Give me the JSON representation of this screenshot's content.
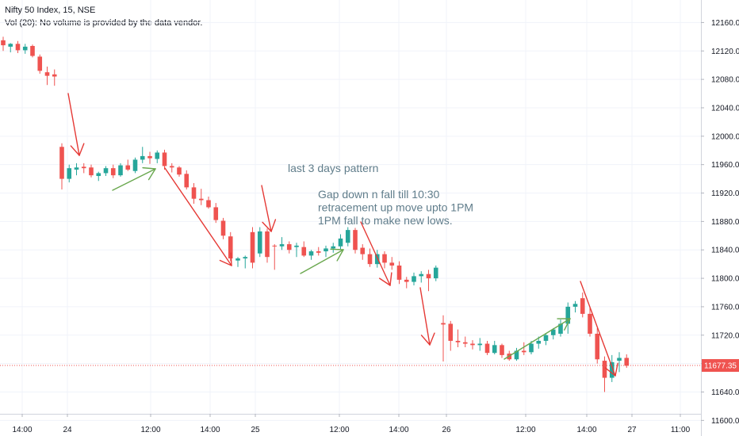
{
  "header": {
    "symbol": "Nifty 50 Index, 15, NSE",
    "volume_note": "Vol (20): No volume is provided by the data vendor."
  },
  "annotations": {
    "title": "last 3 days pattern",
    "lines": [
      "Gap down n fall till 10:30",
      "retracement up move upto 1PM",
      "1PM fall to make new lows."
    ]
  },
  "chart_data": {
    "type": "candlestick",
    "y_axis": {
      "ticks": [
        12160,
        12120,
        12080,
        12040,
        12000,
        11960,
        11920,
        11880,
        11840,
        11800,
        11760,
        11720,
        11680,
        11640,
        11600
      ],
      "range": [
        11587,
        12185
      ]
    },
    "x_axis": {
      "ticks": [
        "14:00",
        "24",
        "12:00",
        "14:00",
        "25",
        "12:00",
        "14:00",
        "26",
        "12:00",
        "14:00",
        "27",
        "11:00"
      ]
    },
    "last_price": {
      "label": "11677.35",
      "value": 11677.35
    },
    "colors": {
      "up": "#26a69a",
      "down": "#ef5350",
      "price_line": "#ef5350",
      "arrow_red": "#e53935",
      "arrow_green": "#6aa84f"
    },
    "candles": [
      {
        "o": 12135,
        "h": 12140,
        "l": 12120,
        "c": 12128
      },
      {
        "o": 12126,
        "h": 12131,
        "l": 12118,
        "c": 12130
      },
      {
        "o": 12130,
        "h": 12134,
        "l": 12117,
        "c": 12121
      },
      {
        "o": 12121,
        "h": 12130,
        "l": 12116,
        "c": 12126
      },
      {
        "o": 12127,
        "h": 12129,
        "l": 12111,
        "c": 12113
      },
      {
        "o": 12112,
        "h": 12115,
        "l": 12088,
        "c": 12092
      },
      {
        "o": 12090,
        "h": 12098,
        "l": 12072,
        "c": 12085
      },
      {
        "o": 12087,
        "h": 12094,
        "l": 12071,
        "c": 12084
      },
      {
        "o": 11985,
        "h": 11990,
        "l": 11925,
        "c": 11940
      },
      {
        "o": 11940,
        "h": 11960,
        "l": 11935,
        "c": 11955
      },
      {
        "o": 11953,
        "h": 11962,
        "l": 11945,
        "c": 11956
      },
      {
        "o": 11957,
        "h": 11962,
        "l": 11948,
        "c": 11955
      },
      {
        "o": 11956,
        "h": 11960,
        "l": 11942,
        "c": 11945
      },
      {
        "o": 11944,
        "h": 11950,
        "l": 11937,
        "c": 11948
      },
      {
        "o": 11948,
        "h": 11958,
        "l": 11944,
        "c": 11955
      },
      {
        "o": 11955,
        "h": 11960,
        "l": 11941,
        "c": 11945
      },
      {
        "o": 11945,
        "h": 11962,
        "l": 11943,
        "c": 11959
      },
      {
        "o": 11959,
        "h": 11967,
        "l": 11951,
        "c": 11953
      },
      {
        "o": 11951,
        "h": 11970,
        "l": 11948,
        "c": 11967
      },
      {
        "o": 11967,
        "h": 11985,
        "l": 11962,
        "c": 11972
      },
      {
        "o": 11972,
        "h": 11978,
        "l": 11961,
        "c": 11969
      },
      {
        "o": 11968,
        "h": 11980,
        "l": 11962,
        "c": 11977
      },
      {
        "o": 11977,
        "h": 11981,
        "l": 11953,
        "c": 11958
      },
      {
        "o": 11958,
        "h": 11962,
        "l": 11949,
        "c": 11956
      },
      {
        "o": 11956,
        "h": 11958,
        "l": 11943,
        "c": 11946
      },
      {
        "o": 11947,
        "h": 11952,
        "l": 11925,
        "c": 11928
      },
      {
        "o": 11928,
        "h": 11934,
        "l": 11905,
        "c": 11912
      },
      {
        "o": 11912,
        "h": 11926,
        "l": 11903,
        "c": 11910
      },
      {
        "o": 11910,
        "h": 11915,
        "l": 11898,
        "c": 11900
      },
      {
        "o": 11900,
        "h": 11906,
        "l": 11878,
        "c": 11882
      },
      {
        "o": 11881,
        "h": 11885,
        "l": 11855,
        "c": 11860
      },
      {
        "o": 11859,
        "h": 11865,
        "l": 11824,
        "c": 11828
      },
      {
        "o": 11825,
        "h": 11830,
        "l": 11816,
        "c": 11828
      },
      {
        "o": 11828,
        "h": 11832,
        "l": 11814,
        "c": 11830
      },
      {
        "o": 11865,
        "h": 11872,
        "l": 11814,
        "c": 11822
      },
      {
        "o": 11835,
        "h": 11872,
        "l": 11830,
        "c": 11866
      },
      {
        "o": 11866,
        "h": 11870,
        "l": 11822,
        "c": 11830
      },
      {
        "o": 11846,
        "h": 11848,
        "l": 11812,
        "c": 11845
      },
      {
        "o": 11845,
        "h": 11858,
        "l": 11840,
        "c": 11848
      },
      {
        "o": 11848,
        "h": 11852,
        "l": 11835,
        "c": 11840
      },
      {
        "o": 11844,
        "h": 11850,
        "l": 11830,
        "c": 11846
      },
      {
        "o": 11844,
        "h": 11852,
        "l": 11830,
        "c": 11832
      },
      {
        "o": 11832,
        "h": 11840,
        "l": 11826,
        "c": 11838
      },
      {
        "o": 11838,
        "h": 11844,
        "l": 11832,
        "c": 11836
      },
      {
        "o": 11838,
        "h": 11846,
        "l": 11830,
        "c": 11842
      },
      {
        "o": 11842,
        "h": 11850,
        "l": 11836,
        "c": 11845
      },
      {
        "o": 11845,
        "h": 11862,
        "l": 11840,
        "c": 11856
      },
      {
        "o": 11850,
        "h": 11872,
        "l": 11845,
        "c": 11868
      },
      {
        "o": 11868,
        "h": 11871,
        "l": 11835,
        "c": 11840
      },
      {
        "o": 11843,
        "h": 11848,
        "l": 11826,
        "c": 11834
      },
      {
        "o": 11834,
        "h": 11842,
        "l": 11816,
        "c": 11820
      },
      {
        "o": 11820,
        "h": 11840,
        "l": 11815,
        "c": 11834
      },
      {
        "o": 11834,
        "h": 11838,
        "l": 11814,
        "c": 11822
      },
      {
        "o": 11822,
        "h": 11830,
        "l": 11812,
        "c": 11818
      },
      {
        "o": 11818,
        "h": 11824,
        "l": 11792,
        "c": 11798
      },
      {
        "o": 11798,
        "h": 11802,
        "l": 11786,
        "c": 11795
      },
      {
        "o": 11795,
        "h": 11808,
        "l": 11790,
        "c": 11803
      },
      {
        "o": 11803,
        "h": 11810,
        "l": 11794,
        "c": 11806
      },
      {
        "o": 11806,
        "h": 11812,
        "l": 11782,
        "c": 11800
      },
      {
        "o": 11800,
        "h": 11818,
        "l": 11796,
        "c": 11815
      },
      {
        "o": 11737,
        "h": 11748,
        "l": 11683,
        "c": 11735
      },
      {
        "o": 11736,
        "h": 11740,
        "l": 11698,
        "c": 11712
      },
      {
        "o": 11712,
        "h": 11728,
        "l": 11703,
        "c": 11710
      },
      {
        "o": 11710,
        "h": 11718,
        "l": 11703,
        "c": 11708
      },
      {
        "o": 11708,
        "h": 11713,
        "l": 11700,
        "c": 11706
      },
      {
        "o": 11706,
        "h": 11716,
        "l": 11698,
        "c": 11708
      },
      {
        "o": 11708,
        "h": 11712,
        "l": 11692,
        "c": 11695
      },
      {
        "o": 11695,
        "h": 11712,
        "l": 11693,
        "c": 11706
      },
      {
        "o": 11706,
        "h": 11708,
        "l": 11688,
        "c": 11692
      },
      {
        "o": 11694,
        "h": 11698,
        "l": 11684,
        "c": 11686
      },
      {
        "o": 11686,
        "h": 11702,
        "l": 11684,
        "c": 11698
      },
      {
        "o": 11698,
        "h": 11710,
        "l": 11692,
        "c": 11696
      },
      {
        "o": 11696,
        "h": 11712,
        "l": 11693,
        "c": 11708
      },
      {
        "o": 11708,
        "h": 11718,
        "l": 11701,
        "c": 11712
      },
      {
        "o": 11712,
        "h": 11722,
        "l": 11706,
        "c": 11720
      },
      {
        "o": 11720,
        "h": 11730,
        "l": 11714,
        "c": 11728
      },
      {
        "o": 11722,
        "h": 11742,
        "l": 11718,
        "c": 11736
      },
      {
        "o": 11736,
        "h": 11766,
        "l": 11722,
        "c": 11760
      },
      {
        "o": 11760,
        "h": 11768,
        "l": 11752,
        "c": 11764
      },
      {
        "o": 11772,
        "h": 11780,
        "l": 11745,
        "c": 11750
      },
      {
        "o": 11750,
        "h": 11760,
        "l": 11718,
        "c": 11722
      },
      {
        "o": 11722,
        "h": 11730,
        "l": 11680,
        "c": 11686
      },
      {
        "o": 11684,
        "h": 11690,
        "l": 11640,
        "c": 11660
      },
      {
        "o": 11660,
        "h": 11692,
        "l": 11654,
        "c": 11682
      },
      {
        "o": 11684,
        "h": 11696,
        "l": 11668,
        "c": 11688
      },
      {
        "o": 11688,
        "h": 11693,
        "l": 11674,
        "c": 11677
      }
    ]
  }
}
